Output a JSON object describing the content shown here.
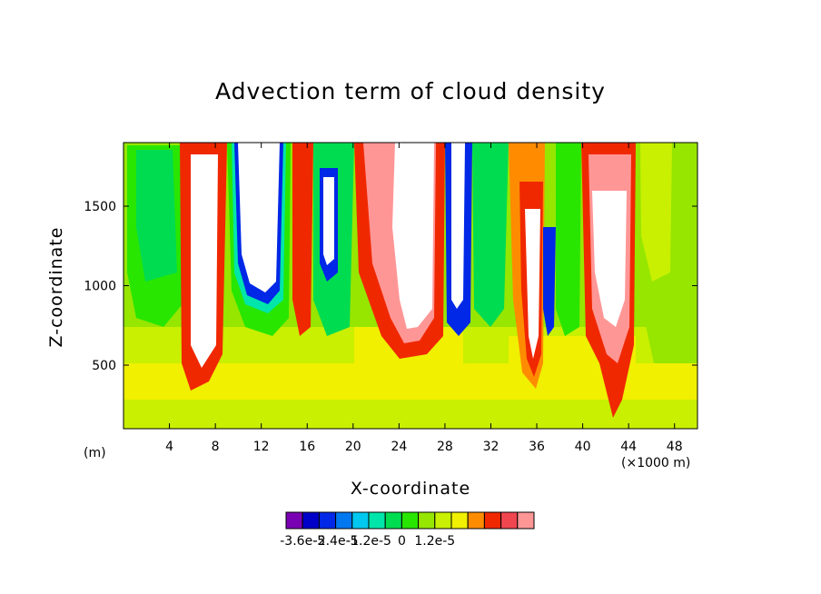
{
  "chart_data": {
    "type": "heatmap",
    "title": "Advection term of cloud density",
    "xlabel": "X-coordinate",
    "ylabel": "Z-coordinate",
    "x_unit_left": "(m)",
    "x_unit_right": "(×1000 m)",
    "xlim": [
      0,
      50
    ],
    "ylim": [
      100,
      1900
    ],
    "x_ticks": [
      4,
      8,
      12,
      16,
      20,
      24,
      28,
      32,
      36,
      40,
      44,
      48
    ],
    "x_tick_labels": [
      "4",
      "8",
      "12",
      "16",
      "20",
      "24",
      "28",
      "32",
      "36",
      "40",
      "44",
      "48"
    ],
    "y_ticks": [
      500,
      1000,
      1500
    ],
    "y_tick_labels": [
      "500",
      "1000",
      "1500"
    ],
    "colorbar": {
      "colors": [
        "#7a00b4",
        "#0000c8",
        "#0028e6",
        "#0078f0",
        "#00c8f0",
        "#00e6aa",
        "#00dc50",
        "#28e600",
        "#96e600",
        "#c8f000",
        "#f0f000",
        "#ff8c00",
        "#f02800",
        "#f04650",
        "#ff9696"
      ],
      "labels": [
        "-3.6e-5",
        "-2.4e-5",
        "-1.2e-5",
        "0",
        "1.2e-5"
      ],
      "levels": [
        -3.6e-05,
        -2.4e-05,
        -1.2e-05,
        0,
        1.2e-05
      ],
      "above_max_color": "#ffffff"
    },
    "grid": false
  }
}
